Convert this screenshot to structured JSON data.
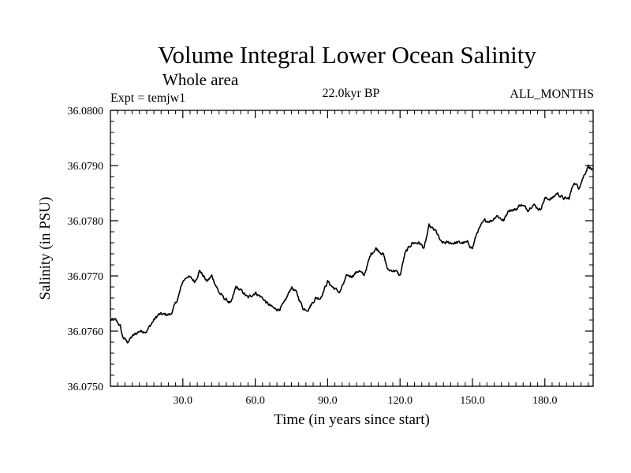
{
  "chart_data": {
    "type": "line",
    "title": "Volume Integral Lower Ocean Salinity",
    "subtitle": "Whole area",
    "experiment": "Expt = temjw1",
    "period": "22.0kyr BP",
    "months": "ALL_MONTHS",
    "xlabel": "Time (in years since start)",
    "ylabel": "Salinity (in PSU)",
    "xlim": [
      0,
      200
    ],
    "ylim": [
      36.075,
      36.08
    ],
    "xticks": [
      30,
      60,
      90,
      120,
      150,
      180
    ],
    "xtick_labels": [
      "30.0",
      "60.0",
      "90.0",
      "120.0",
      "150.0",
      "180.0"
    ],
    "yticks": [
      36.075,
      36.076,
      36.077,
      36.078,
      36.079,
      36.08
    ],
    "ytick_labels": [
      "36.0750",
      "36.0760",
      "36.0770",
      "36.0780",
      "36.0790",
      "36.0800"
    ],
    "series": [
      {
        "name": "salinity",
        "x": [
          0,
          2,
          4,
          5,
          7,
          9,
          12,
          15,
          18,
          20,
          22,
          25,
          28,
          30,
          32,
          35,
          37,
          40,
          42,
          45,
          47,
          50,
          52,
          55,
          57,
          60,
          63,
          65,
          68,
          70,
          72,
          75,
          77,
          80,
          82,
          85,
          87,
          90,
          92,
          95,
          98,
          100,
          103,
          105,
          108,
          110,
          113,
          115,
          118,
          120,
          122,
          125,
          128,
          130,
          132,
          135,
          137,
          140,
          143,
          145,
          148,
          150,
          152,
          155,
          158,
          160,
          163,
          165,
          168,
          170,
          173,
          175,
          178,
          180,
          183,
          185,
          188,
          190,
          192,
          194,
          196,
          198,
          200
        ],
        "y": [
          36.0762,
          36.0762,
          36.0761,
          36.0759,
          36.0758,
          36.0759,
          36.076,
          36.076,
          36.0762,
          36.0763,
          36.0763,
          36.0763,
          36.0766,
          36.0769,
          36.077,
          36.0769,
          36.0771,
          36.0769,
          36.077,
          36.0767,
          36.0766,
          36.0765,
          36.0768,
          36.0767,
          36.0766,
          36.0767,
          36.0766,
          36.0765,
          36.0764,
          36.0764,
          36.0765,
          36.0768,
          36.0767,
          36.0764,
          36.0764,
          36.0766,
          36.0766,
          36.0769,
          36.0768,
          36.0767,
          36.077,
          36.077,
          36.0771,
          36.077,
          36.0774,
          36.0775,
          36.0774,
          36.0771,
          36.0771,
          36.077,
          36.0774,
          36.0776,
          36.0776,
          36.0775,
          36.0779,
          36.0778,
          36.0776,
          36.0776,
          36.0776,
          36.0776,
          36.0776,
          36.0775,
          36.0778,
          36.078,
          36.078,
          36.0781,
          36.078,
          36.0782,
          36.0782,
          36.0783,
          36.0782,
          36.0783,
          36.0782,
          36.0784,
          36.0784,
          36.0785,
          36.0784,
          36.0784,
          36.0787,
          36.0786,
          36.0788,
          36.079,
          36.0789
        ]
      }
    ]
  }
}
